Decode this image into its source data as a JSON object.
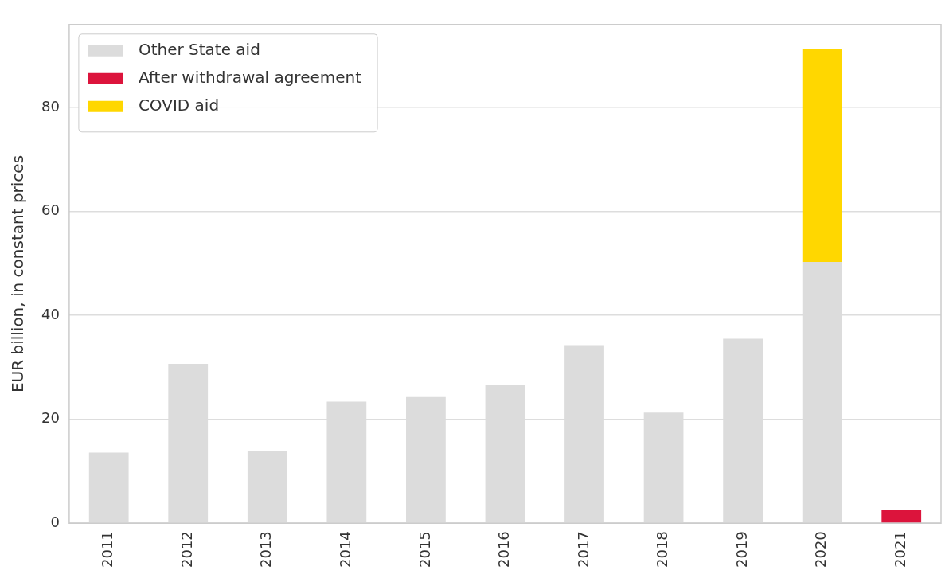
{
  "chart_data": {
    "type": "bar",
    "stacked": true,
    "ylabel": "EUR billion, in constant prices",
    "categories": [
      "2011",
      "2012",
      "2013",
      "2014",
      "2015",
      "2016",
      "2017",
      "2018",
      "2019",
      "2020",
      "2021"
    ],
    "series": [
      {
        "name": "Other State aid",
        "color": "#dcdcdc",
        "values": [
          13.6,
          30.7,
          13.9,
          23.4,
          24.3,
          26.7,
          34.3,
          21.3,
          35.5,
          50.3,
          null
        ]
      },
      {
        "name": "After withdrawal agreement",
        "color": "#dc143c",
        "values": [
          null,
          null,
          null,
          null,
          null,
          null,
          null,
          null,
          null,
          null,
          2.5
        ]
      },
      {
        "name": "COVID aid",
        "color": "#ffd700",
        "values": [
          null,
          null,
          null,
          null,
          null,
          null,
          null,
          null,
          null,
          40.9,
          null
        ]
      }
    ],
    "ylim": [
      0,
      96
    ],
    "yticks": [
      0,
      20,
      40,
      60,
      80
    ],
    "grid": "y",
    "legend": "top left"
  }
}
